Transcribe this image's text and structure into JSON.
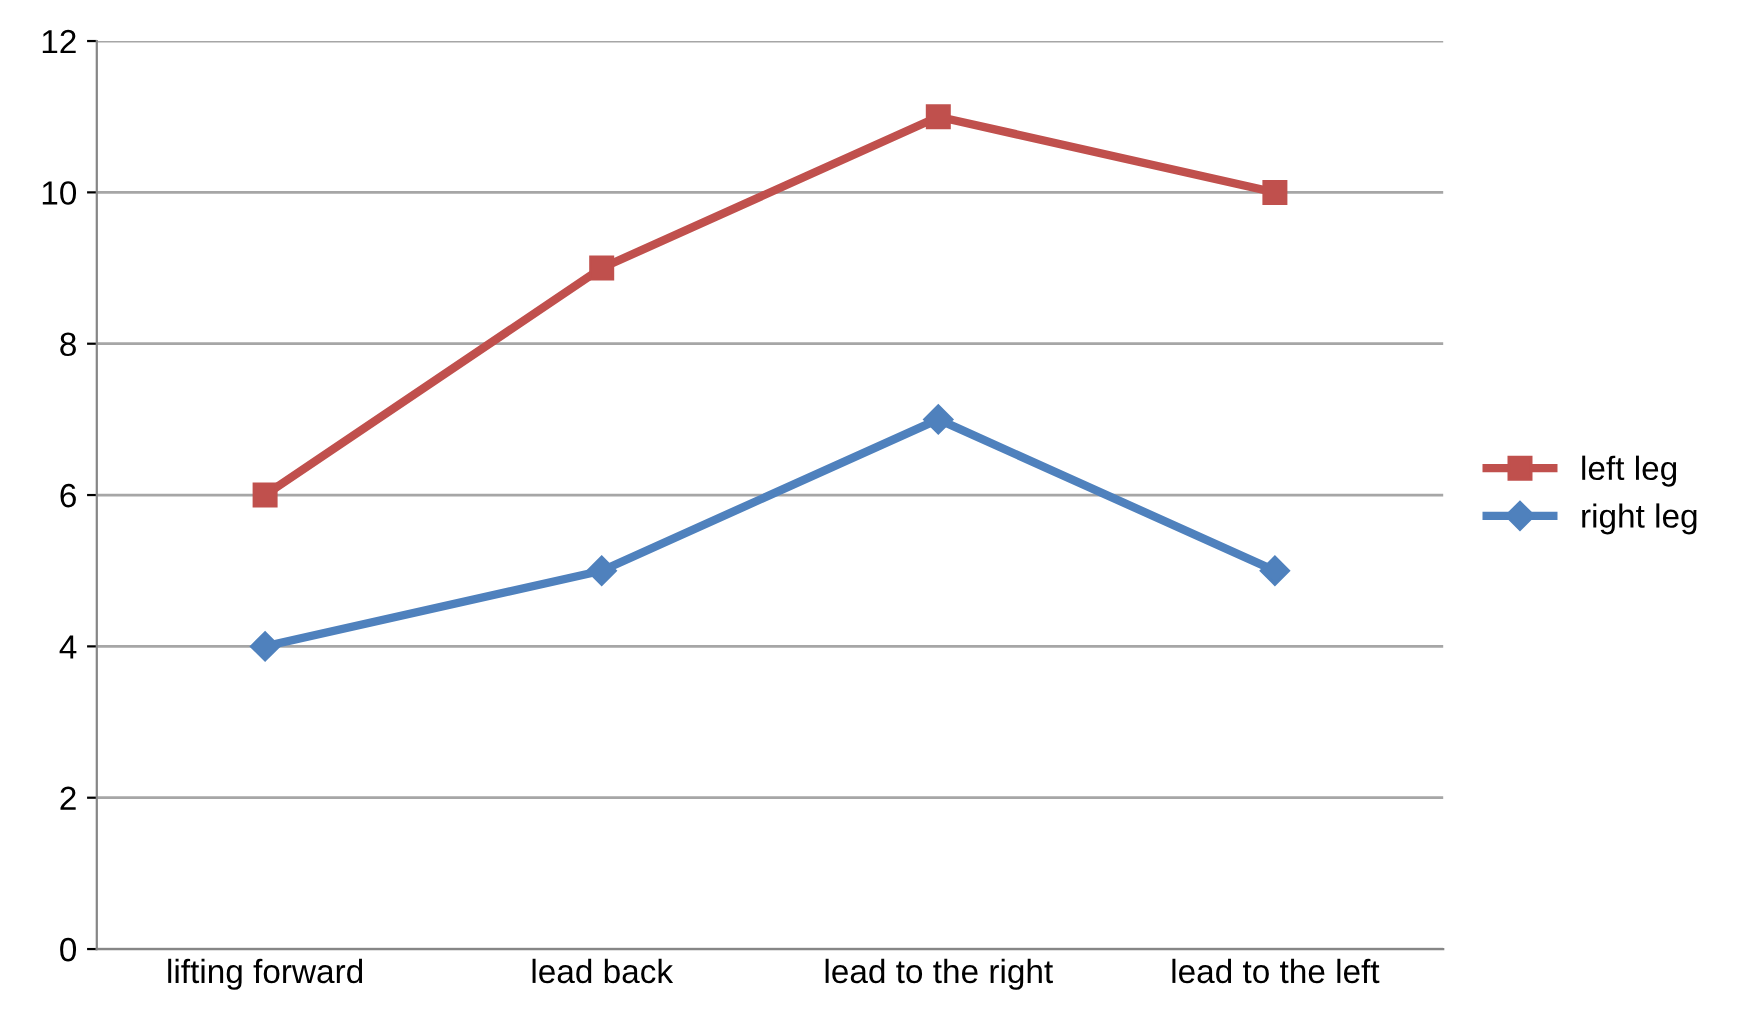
{
  "chart_data": {
    "type": "line",
    "categories": [
      "lifting forward",
      "lead back",
      "lead to the right",
      "lead to the left"
    ],
    "series": [
      {
        "name": "left leg",
        "color": "#c0504d",
        "marker": "square",
        "values": [
          6,
          9,
          11,
          10
        ]
      },
      {
        "name": "right leg",
        "color": "#4f81bd",
        "marker": "diamond",
        "values": [
          4,
          5,
          7,
          5
        ]
      }
    ],
    "ylim": [
      0,
      12
    ],
    "yticks": [
      0,
      2,
      4,
      6,
      8,
      10,
      12
    ],
    "grid": "y",
    "legend": "right",
    "line_style": "solid"
  }
}
